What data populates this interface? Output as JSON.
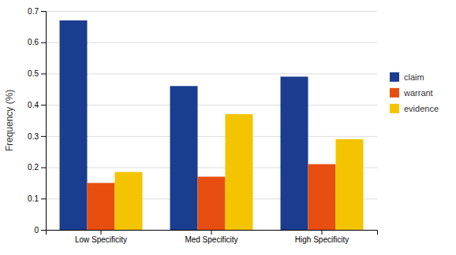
{
  "chart_data": {
    "type": "bar",
    "ylabel": "Frequency (%)",
    "categories": [
      "Low Specificity",
      "Med Specificity",
      "High Specificity"
    ],
    "series": [
      {
        "name": "claim",
        "color": "#1B3D8F",
        "values": [
          0.67,
          0.46,
          0.49
        ]
      },
      {
        "name": "warrant",
        "color": "#E84E0F",
        "values": [
          0.15,
          0.17,
          0.21
        ]
      },
      {
        "name": "evidence",
        "color": "#F5C400",
        "values": [
          0.185,
          0.37,
          0.29
        ]
      }
    ],
    "ylim": [
      0,
      0.7
    ],
    "yticks": [
      0,
      0.1,
      0.2,
      0.3,
      0.4,
      0.5,
      0.6,
      0.7
    ],
    "grid": true,
    "legend": "right"
  }
}
